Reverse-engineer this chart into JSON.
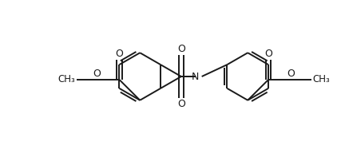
{
  "line_color": "#1a1a1a",
  "background_color": "#ffffff",
  "lw": 1.4,
  "figsize": [
    4.22,
    1.92
  ],
  "dpi": 100,
  "xlim": [
    0,
    422
  ],
  "ylim": [
    0,
    192
  ]
}
